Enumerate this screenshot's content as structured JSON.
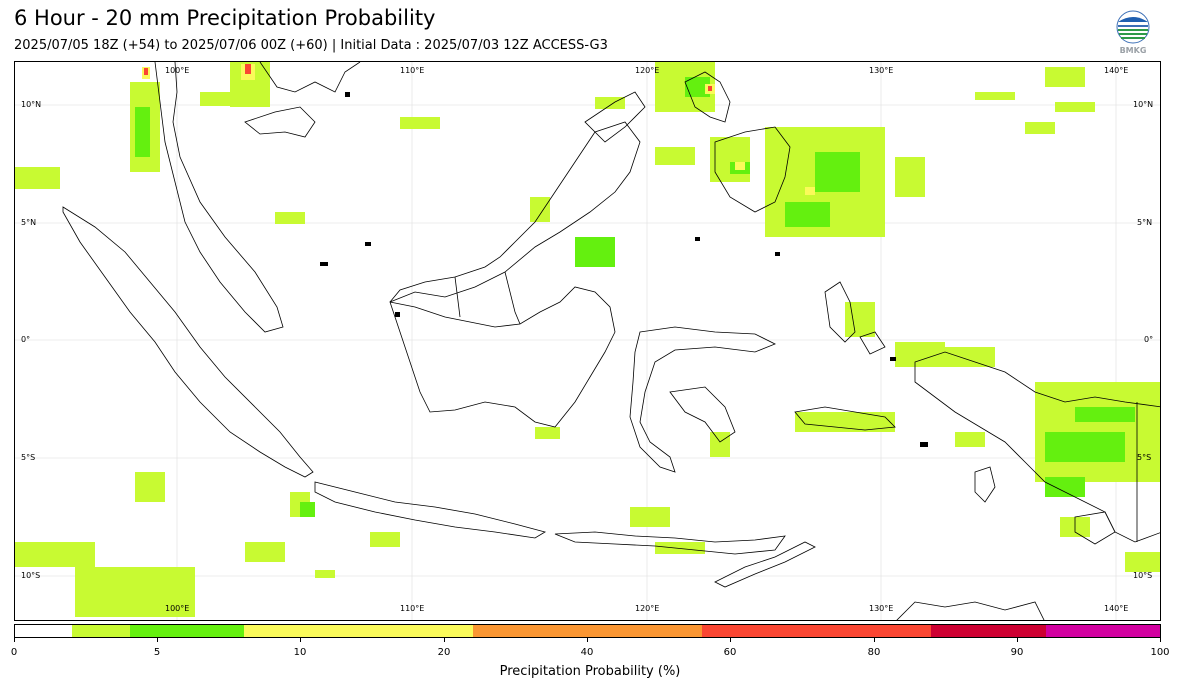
{
  "header": {
    "title": "6 Hour - 20 mm Precipitation Probability",
    "subtitle": "2025/07/05 18Z (+54) to 2025/07/06 00Z (+60) | Initial Data : 2025/07/03 12Z ACCESS-G3"
  },
  "logo": {
    "text": "BMKG",
    "icon": "bmkg-logo-icon"
  },
  "map": {
    "lon_labels": [
      "100°E",
      "110°E",
      "120°E",
      "130°E",
      "140°E"
    ],
    "lat_labels": [
      "10°N",
      "5°N",
      "0°",
      "5°S",
      "10°S"
    ]
  },
  "colorbar": {
    "label": "Precipitation Probability (%)",
    "ticks": [
      "0",
      "5",
      "10",
      "20",
      "40",
      "60",
      "80",
      "90",
      "100"
    ],
    "colors": [
      "#ffffff",
      "#c8fa32",
      "#64f00f",
      "#fafa5a",
      "#fa9632",
      "#fa4632",
      "#cd0032",
      "#d200a0"
    ]
  }
}
